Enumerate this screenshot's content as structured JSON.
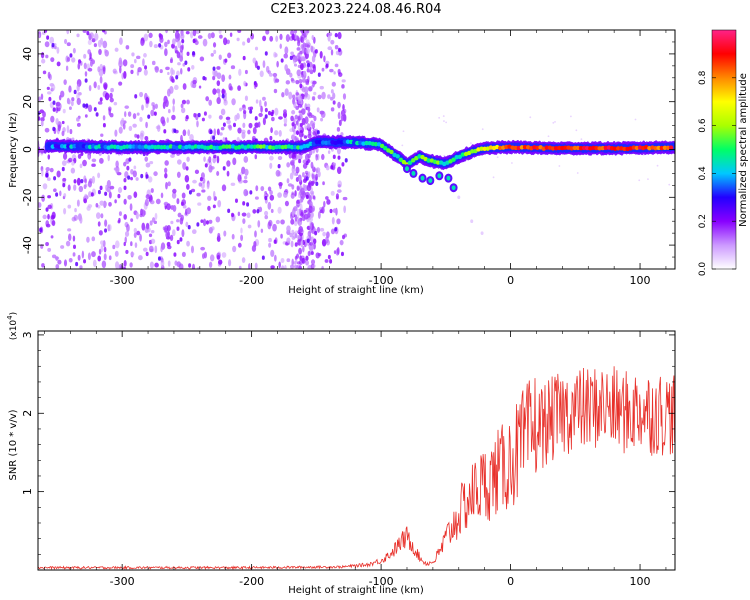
{
  "title": "C2E3.2023.224.08.46.R04",
  "chart_data": [
    {
      "type": "heatmap",
      "title": "C2E3.2023.224.08.46.R04",
      "xlabel": "Height of straight line (km)",
      "ylabel": "Frequency (Hz)",
      "xlim": [
        -365,
        127
      ],
      "ylim": [
        -50,
        50
      ],
      "x_ticks": [
        -300,
        -200,
        -100,
        0,
        100
      ],
      "y_ticks": [
        -40,
        -20,
        0,
        20,
        40
      ],
      "colorbar": {
        "label": "Normalized spectral amplitude",
        "range": [
          0,
          1
        ],
        "ticks": [
          0.0,
          0.2,
          0.4,
          0.6,
          0.8
        ],
        "tick_labels": [
          "0.0",
          "0.2",
          "0.4",
          "0.6",
          "0.8"
        ],
        "colormap": [
          "#ffffff",
          "#cc99ff",
          "#8800ff",
          "#2200ff",
          "#00c8ff",
          "#00ff66",
          "#aaff00",
          "#ffff00",
          "#ff8800",
          "#ff0000",
          "#ff2288"
        ]
      },
      "main_ridge": [
        {
          "x": -360,
          "y": 1.5,
          "amp": 0.35
        },
        {
          "x": -300,
          "y": 1.0,
          "amp": 0.4
        },
        {
          "x": -250,
          "y": 1.0,
          "amp": 0.45
        },
        {
          "x": -200,
          "y": 1.0,
          "amp": 0.5
        },
        {
          "x": -160,
          "y": 1.0,
          "amp": 0.45
        },
        {
          "x": -150,
          "y": 3.0,
          "amp": 0.35
        },
        {
          "x": -120,
          "y": 3.0,
          "amp": 0.4
        },
        {
          "x": -100,
          "y": 2.0,
          "amp": 0.45
        },
        {
          "x": -90,
          "y": -2.0,
          "amp": 0.5
        },
        {
          "x": -80,
          "y": -6.0,
          "amp": 0.55
        },
        {
          "x": -70,
          "y": -3.0,
          "amp": 0.5
        },
        {
          "x": -60,
          "y": -5.0,
          "amp": 0.55
        },
        {
          "x": -50,
          "y": -6.0,
          "amp": 0.5
        },
        {
          "x": -40,
          "y": -3.0,
          "amp": 0.5
        },
        {
          "x": -30,
          "y": -1.0,
          "amp": 0.55
        },
        {
          "x": -20,
          "y": 0.5,
          "amp": 0.7
        },
        {
          "x": 0,
          "y": 1.0,
          "amp": 0.85
        },
        {
          "x": 30,
          "y": 0.5,
          "amp": 0.9
        },
        {
          "x": 60,
          "y": 0.5,
          "amp": 0.9
        },
        {
          "x": 90,
          "y": 0.5,
          "amp": 0.9
        },
        {
          "x": 127,
          "y": 1.0,
          "amp": 0.85
        }
      ],
      "noise_band": {
        "x_from": -365,
        "x_to": -125,
        "note": "scattered low-amplitude noise across full frequency range"
      }
    },
    {
      "type": "line",
      "xlabel": "Height of straight line (km)",
      "ylabel": "SNR (10 * v/v)",
      "y_multiplier": "(x10^4)",
      "xlim": [
        -365,
        127
      ],
      "ylim": [
        0,
        3.05
      ],
      "x_ticks": [
        -300,
        -200,
        -100,
        0,
        100
      ],
      "y_ticks": [
        1,
        2,
        3
      ],
      "color": "#e8302a",
      "series": [
        {
          "x": [
            -365,
            -300,
            -200,
            -130,
            -110,
            -100,
            -95,
            -90,
            -85,
            -80,
            -75,
            -70,
            -65,
            -60,
            -55,
            -50,
            -45,
            -40,
            -35,
            -30,
            -25,
            -20,
            -15,
            -10,
            -5,
            0,
            5,
            10,
            15,
            20,
            25,
            30,
            40,
            50,
            60,
            70,
            80,
            90,
            100,
            110,
            120,
            127
          ],
          "y": [
            0.03,
            0.03,
            0.03,
            0.04,
            0.07,
            0.12,
            0.18,
            0.25,
            0.35,
            0.42,
            0.3,
            0.15,
            0.08,
            0.1,
            0.22,
            0.4,
            0.55,
            0.7,
            0.85,
            0.95,
            1.05,
            1.1,
            1.15,
            1.25,
            1.3,
            1.4,
            1.5,
            1.6,
            1.7,
            1.8,
            1.85,
            1.9,
            2.0,
            2.05,
            2.05,
            2.1,
            2.05,
            2.0,
            2.05,
            2.0,
            2.0,
            2.0
          ]
        }
      ]
    }
  ]
}
